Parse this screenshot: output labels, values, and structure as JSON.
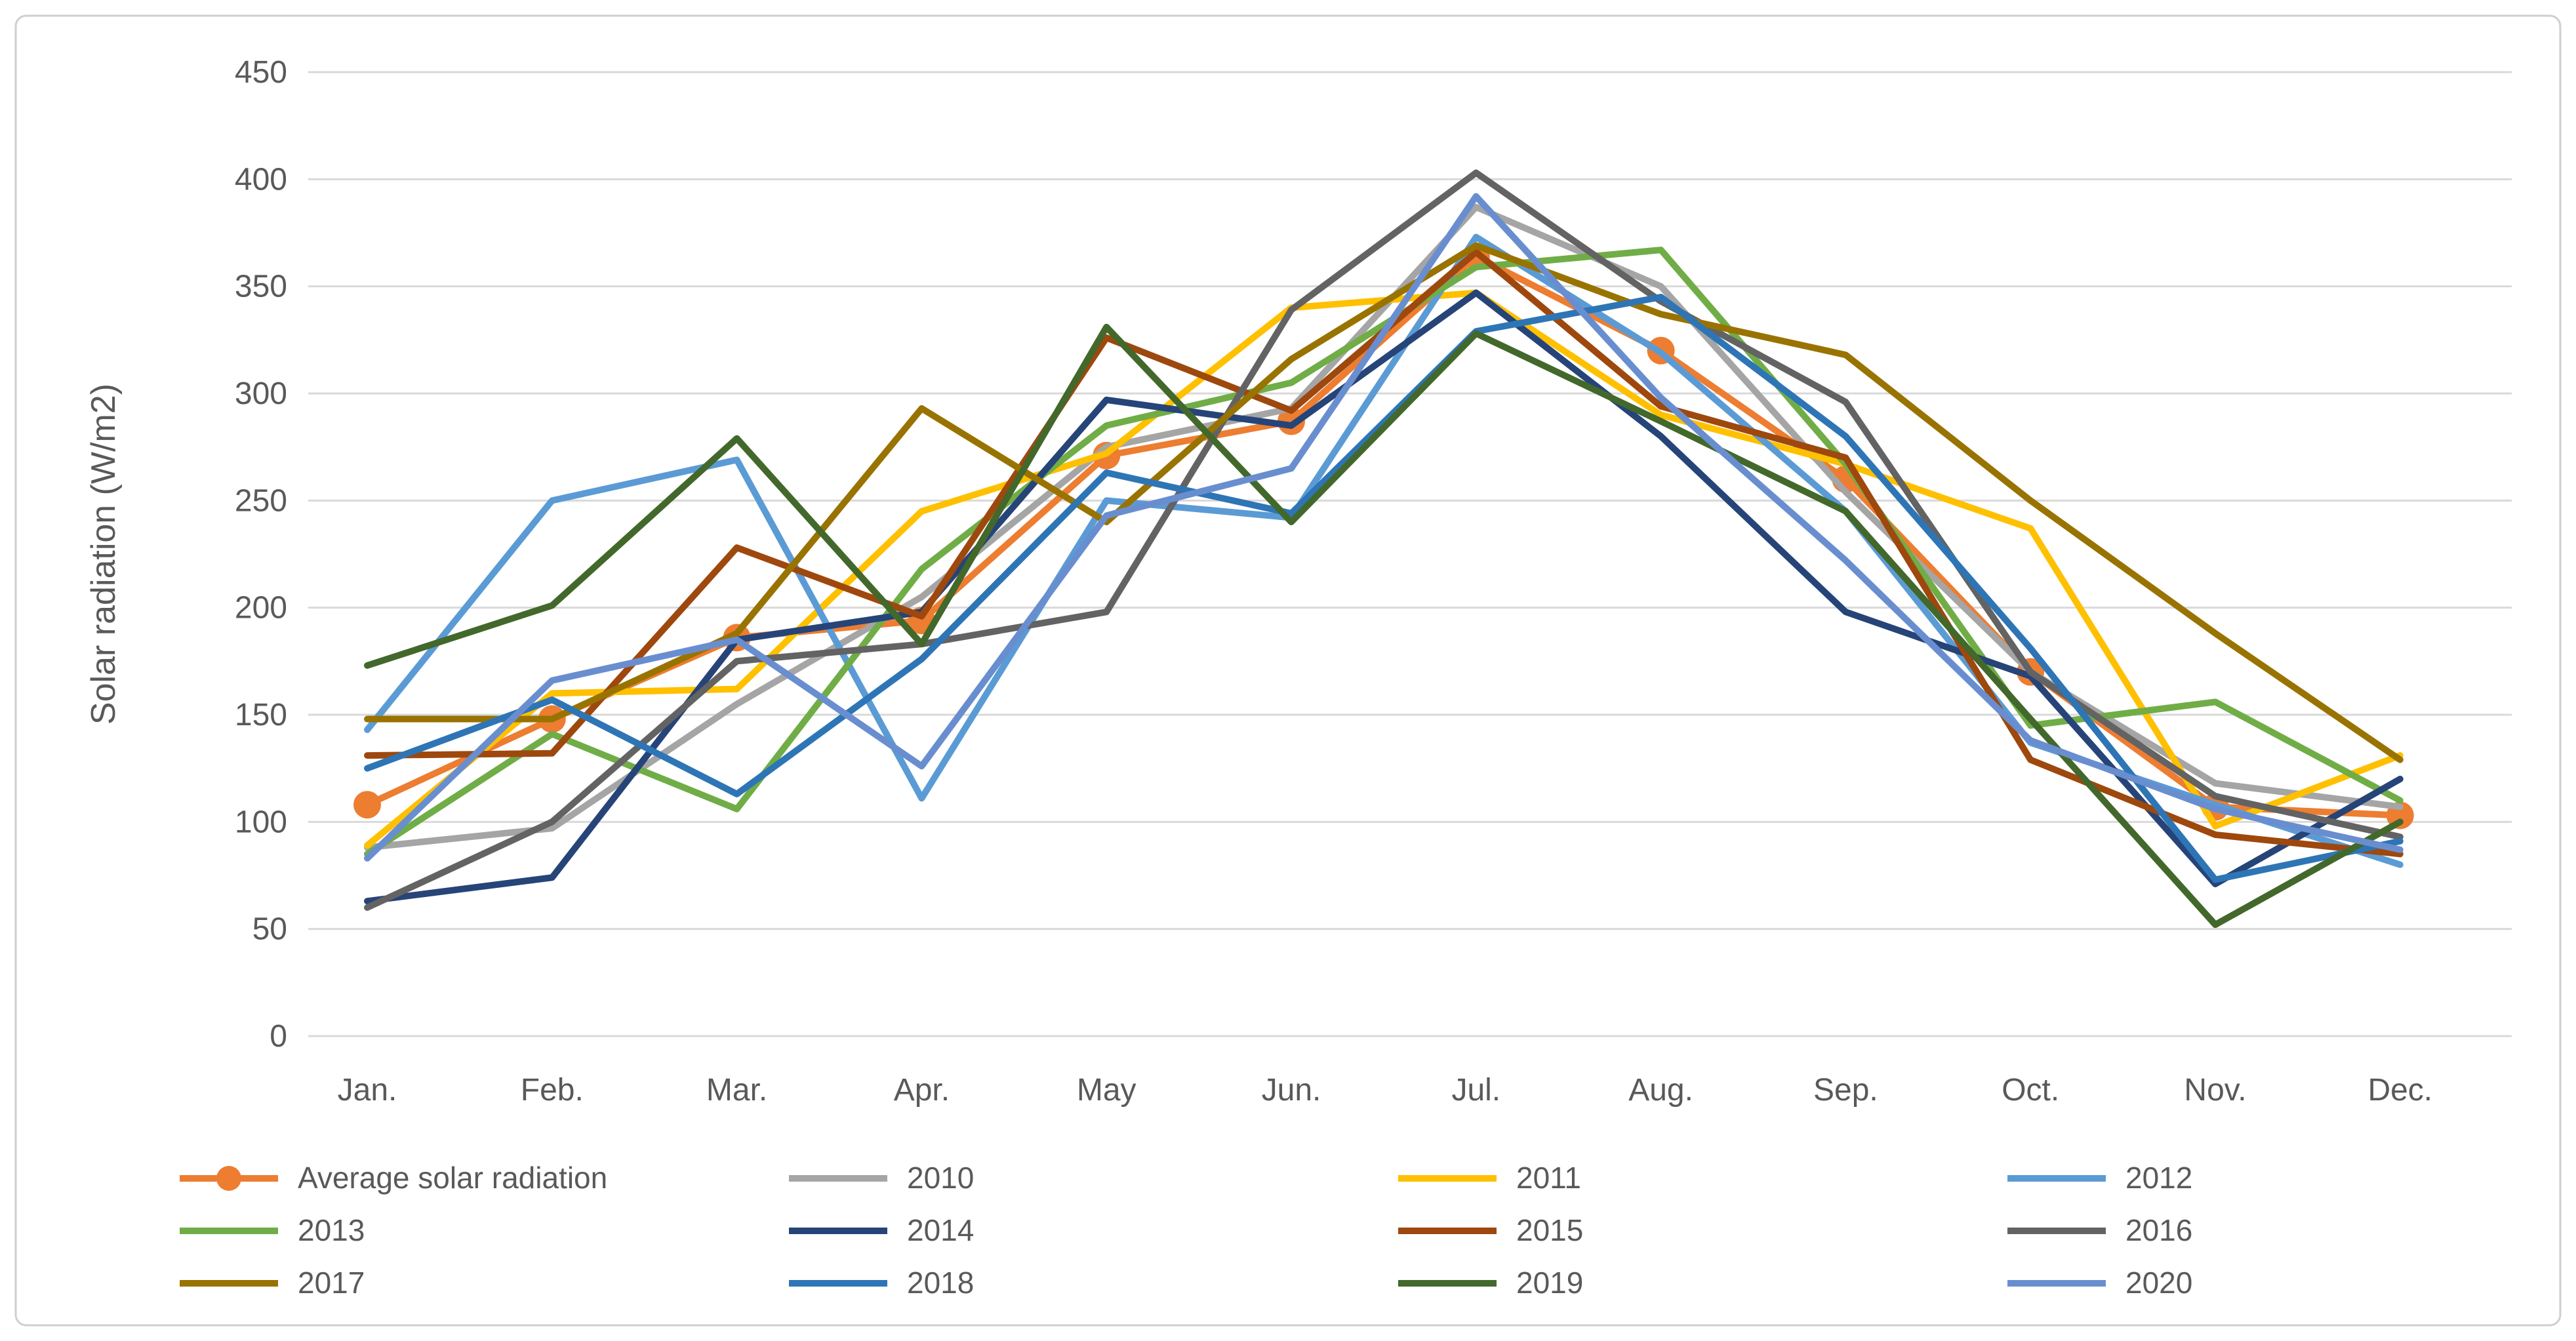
{
  "figure": {
    "background": "#ffffff",
    "border_color": "#d0cece",
    "gridline_color": "#d9d9d9",
    "text_color": "#595959"
  },
  "chart_data": {
    "type": "line",
    "title": "",
    "xlabel": "",
    "ylabel": "Solar radiation (W/m2)",
    "categories": [
      "Jan.",
      "Feb.",
      "Mar.",
      "Apr.",
      "May",
      "Jun.",
      "Jul.",
      "Aug.",
      "Sep.",
      "Oct.",
      "Nov.",
      "Dec."
    ],
    "y_axis": {
      "min": 0,
      "max": 450,
      "step": 50,
      "tick_labels": [
        "0",
        "50",
        "100",
        "150",
        "200",
        "250",
        "300",
        "350",
        "400",
        "450"
      ]
    },
    "grid": "horizontal",
    "legend_position": "bottom",
    "legend_columns": 4,
    "series": [
      {
        "name": "Average solar radiation",
        "color": "#ED7D31",
        "marker": true,
        "values": [
          108,
          148,
          186,
          194,
          271,
          287,
          364,
          320,
          260,
          170,
          107,
          103
        ]
      },
      {
        "name": "2010",
        "color": "#A5A5A5",
        "marker": false,
        "values": [
          88,
          97,
          155,
          205,
          275,
          293,
          387,
          350,
          254,
          170,
          118,
          107
        ]
      },
      {
        "name": "2011",
        "color": "#FFC000",
        "marker": false,
        "values": [
          89,
          160,
          162,
          245,
          272,
          340,
          347,
          290,
          267,
          237,
          98,
          131
        ]
      },
      {
        "name": "2012",
        "color": "#5B9BD5",
        "marker": false,
        "values": [
          143,
          250,
          269,
          111,
          250,
          242,
          373,
          319,
          245,
          137,
          108,
          80
        ]
      },
      {
        "name": "2013",
        "color": "#70AD47",
        "marker": false,
        "values": [
          85,
          141,
          106,
          218,
          285,
          305,
          359,
          367,
          267,
          145,
          156,
          110
        ]
      },
      {
        "name": "2014",
        "color": "#264478",
        "marker": false,
        "values": [
          63,
          74,
          185,
          198,
          297,
          285,
          347,
          280,
          198,
          168,
          71,
          120
        ]
      },
      {
        "name": "2015",
        "color": "#9E480E",
        "marker": false,
        "values": [
          131,
          132,
          228,
          196,
          326,
          292,
          366,
          294,
          270,
          129,
          94,
          85
        ]
      },
      {
        "name": "2016",
        "color": "#636363",
        "marker": false,
        "values": [
          60,
          100,
          175,
          183,
          198,
          339,
          403,
          343,
          296,
          170,
          112,
          93
        ]
      },
      {
        "name": "2017",
        "color": "#997300",
        "marker": false,
        "values": [
          148,
          148,
          188,
          293,
          240,
          316,
          369,
          337,
          318,
          250,
          188,
          129
        ]
      },
      {
        "name": "2018",
        "color": "#2E75B6",
        "marker": false,
        "values": [
          125,
          157,
          113,
          176,
          263,
          244,
          329,
          345,
          280,
          181,
          73,
          91
        ]
      },
      {
        "name": "2019",
        "color": "#43682B",
        "marker": false,
        "values": [
          173,
          201,
          279,
          183,
          331,
          240,
          328,
          287,
          245,
          148,
          52,
          100
        ]
      },
      {
        "name": "2020",
        "color": "#698ED0",
        "marker": false,
        "values": [
          83,
          166,
          185,
          126,
          243,
          265,
          392,
          298,
          222,
          138,
          106,
          87
        ]
      }
    ]
  }
}
